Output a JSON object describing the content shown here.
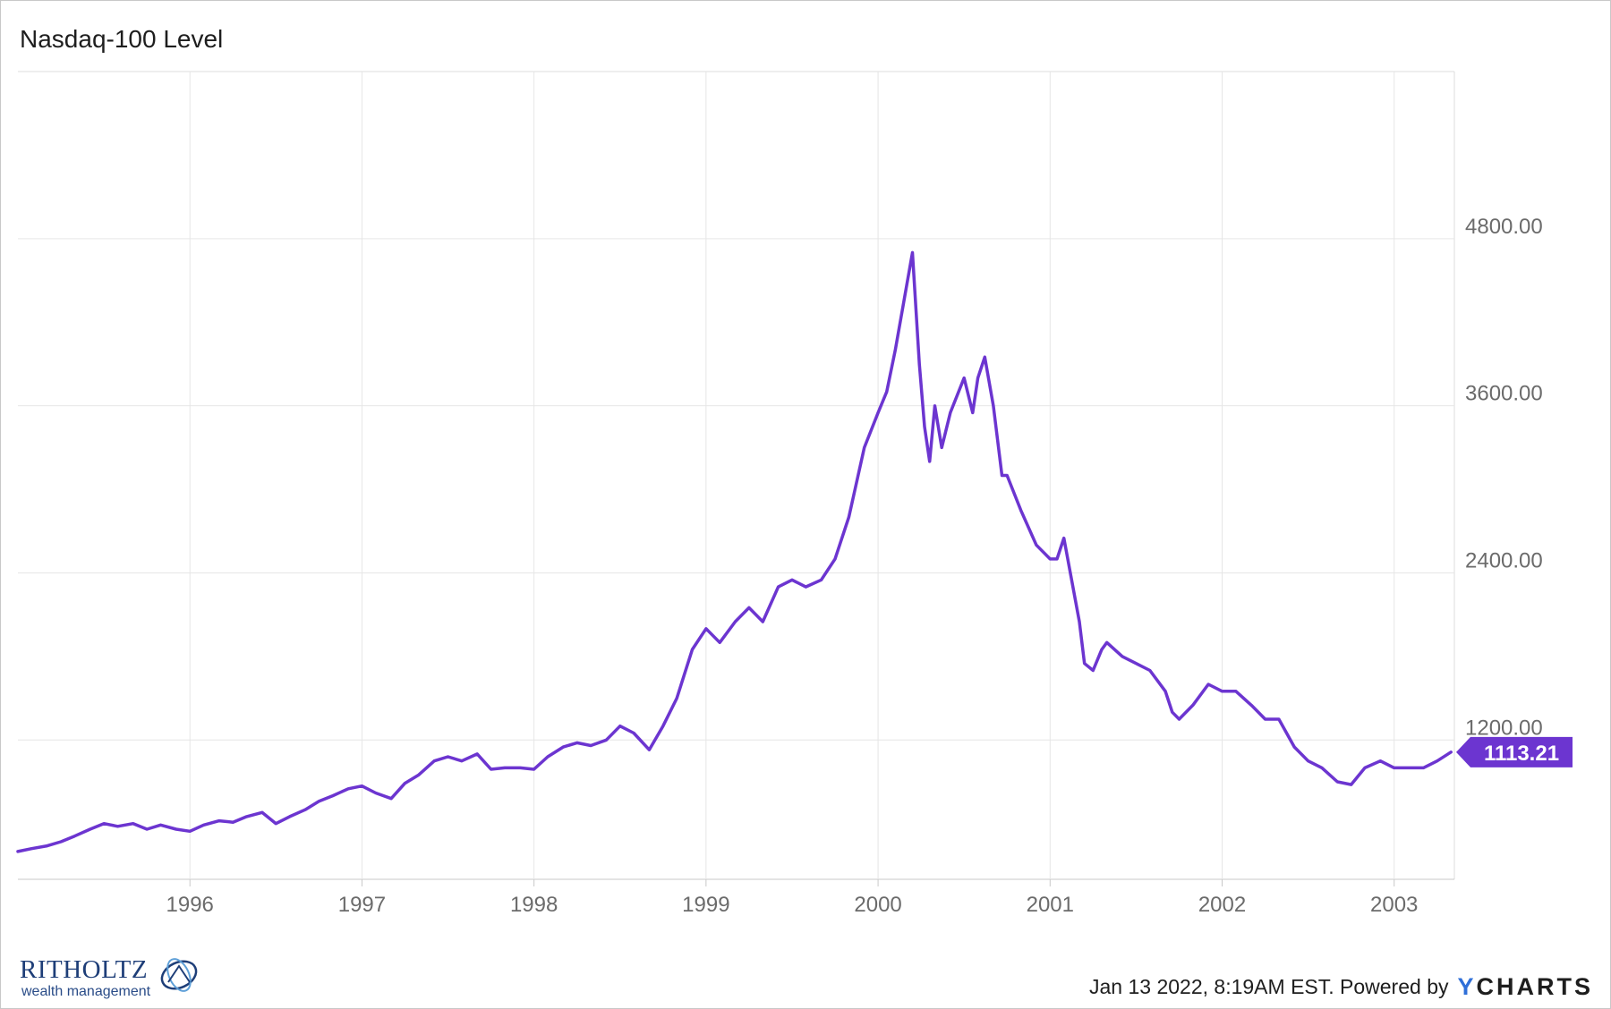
{
  "chart_data": {
    "type": "line",
    "title": "Nasdaq-100 Level",
    "x_ticks": [
      "1996",
      "1997",
      "1998",
      "1999",
      "2000",
      "2001",
      "2002",
      "2003"
    ],
    "y_ticks": [
      "1200.00",
      "2400.00",
      "3600.00",
      "4800.00"
    ],
    "ylim": [
      200,
      6000
    ],
    "xlim": [
      1995.0,
      2003.35
    ],
    "grid": true,
    "line_color": "#6c35d0",
    "last_value_label": "1113.21",
    "series": [
      {
        "x": [
          1995.0,
          1995.08,
          1995.17,
          1995.25,
          1995.33,
          1995.42,
          1995.5,
          1995.58,
          1995.67,
          1995.75,
          1995.83,
          1995.92,
          1996.0,
          1996.08,
          1996.17,
          1996.25,
          1996.33,
          1996.42,
          1996.5,
          1996.58,
          1996.67,
          1996.75,
          1996.83,
          1996.92,
          1997.0,
          1997.08,
          1997.17,
          1997.25,
          1997.33,
          1997.42,
          1997.5,
          1997.58,
          1997.67,
          1997.75,
          1997.83,
          1997.92,
          1998.0,
          1998.08,
          1998.17,
          1998.25,
          1998.33,
          1998.42,
          1998.5,
          1998.58,
          1998.67,
          1998.75,
          1998.83,
          1998.92,
          1999.0,
          1999.08,
          1999.17,
          1999.25,
          1999.33,
          1999.42,
          1999.5,
          1999.58,
          1999.67,
          1999.75,
          1999.83,
          1999.92,
          2000.0,
          2000.05,
          2000.1,
          2000.15,
          2000.2,
          2000.24,
          2000.27,
          2000.3,
          2000.33,
          2000.37,
          2000.42,
          2000.5,
          2000.55,
          2000.58,
          2000.62,
          2000.67,
          2000.72,
          2000.75,
          2000.83,
          2000.92,
          2001.0,
          2001.04,
          2001.08,
          2001.17,
          2001.2,
          2001.25,
          2001.3,
          2001.33,
          2001.42,
          2001.5,
          2001.58,
          2001.67,
          2001.71,
          2001.75,
          2001.83,
          2001.92,
          2002.0,
          2002.08,
          2002.17,
          2002.25,
          2002.33,
          2002.42,
          2002.5,
          2002.58,
          2002.67,
          2002.75,
          2002.83,
          2002.92,
          2003.0,
          2003.08,
          2003.17,
          2003.25,
          2003.33
        ],
        "y": [
          400,
          420,
          440,
          470,
          510,
          560,
          600,
          580,
          600,
          560,
          590,
          560,
          545,
          590,
          620,
          610,
          650,
          680,
          600,
          650,
          700,
          760,
          800,
          850,
          870,
          820,
          780,
          890,
          950,
          1050,
          1080,
          1050,
          1100,
          990,
          1000,
          1000,
          990,
          1080,
          1150,
          1180,
          1160,
          1200,
          1300,
          1250,
          1130,
          1300,
          1500,
          1850,
          2000,
          1900,
          2050,
          2150,
          2050,
          2300,
          2350,
          2300,
          2350,
          2500,
          2800,
          3300,
          3550,
          3700,
          4000,
          4350,
          4700,
          3900,
          3450,
          3200,
          3600,
          3300,
          3550,
          3800,
          3550,
          3800,
          3950,
          3600,
          3100,
          3100,
          2850,
          2600,
          2500,
          2500,
          2650,
          2050,
          1750,
          1700,
          1850,
          1900,
          1800,
          1750,
          1700,
          1550,
          1400,
          1350,
          1450,
          1600,
          1550,
          1550,
          1450,
          1350,
          1350,
          1150,
          1050,
          1000,
          900,
          880,
          1000,
          1050,
          1000,
          1000,
          1000,
          1050,
          1113.21
        ]
      }
    ]
  },
  "footer": {
    "timestamp": "Jan 13 2022, 8:19AM EST. Powered by",
    "brand_y": "Y",
    "brand_rest": "CHARTS"
  },
  "logo": {
    "name": "RITHOLTZ",
    "subtitle": "wealth management"
  }
}
